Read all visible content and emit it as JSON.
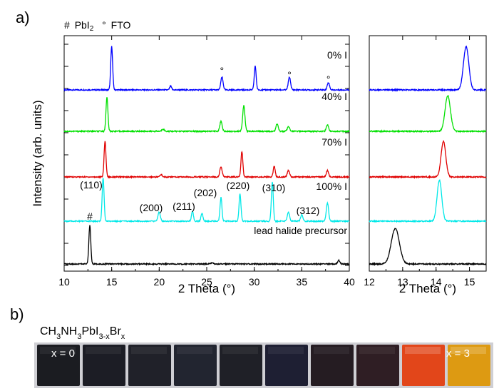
{
  "panels": {
    "a": {
      "label": "a)"
    },
    "b": {
      "label": "b)"
    }
  },
  "legend_markers": {
    "pbi2_symbol": "#",
    "pbi2_main": "PbI",
    "pbi2_sub": "2",
    "fto_symbol": "°",
    "fto_label": "FTO"
  },
  "chart_data": [
    {
      "type": "line",
      "title": "",
      "xlabel": "2 Theta (°)",
      "ylabel": "Intensity (arb. units)",
      "xlim": [
        10,
        40
      ],
      "xticks": [
        "10",
        "15",
        "20",
        "25",
        "30",
        "35",
        "40"
      ],
      "ylim": [
        0,
        5
      ],
      "y_ticklabels": false,
      "grid": false,
      "series": [
        {
          "name": "0% I",
          "label": "0% I",
          "color": "#0000ff",
          "baseline": 4,
          "peaks": [
            [
              15.0,
              0.95,
              0.1
            ],
            [
              21.2,
              0.08,
              0.1
            ],
            [
              26.6,
              0.28,
              0.12
            ],
            [
              30.1,
              0.52,
              0.1
            ],
            [
              33.7,
              0.28,
              0.12
            ],
            [
              37.8,
              0.16,
              0.12
            ]
          ]
        },
        {
          "name": "40% I",
          "label": "40% I",
          "color": "#00e000",
          "baseline": 3,
          "peaks": [
            [
              14.5,
              0.75,
              0.1
            ],
            [
              20.4,
              0.05,
              0.12
            ],
            [
              26.5,
              0.22,
              0.12
            ],
            [
              28.9,
              0.56,
              0.12
            ],
            [
              32.4,
              0.16,
              0.12
            ],
            [
              33.6,
              0.1,
              0.12
            ],
            [
              37.7,
              0.14,
              0.12
            ]
          ]
        },
        {
          "name": "70% I",
          "label": "70% I",
          "color": "#e00000",
          "baseline": 2,
          "peaks": [
            [
              14.3,
              0.78,
              0.1
            ],
            [
              20.2,
              0.05,
              0.12
            ],
            [
              26.5,
              0.22,
              0.12
            ],
            [
              28.7,
              0.56,
              0.1
            ],
            [
              32.1,
              0.24,
              0.1
            ],
            [
              33.6,
              0.14,
              0.12
            ],
            [
              37.7,
              0.14,
              0.12
            ]
          ]
        },
        {
          "name": "100% I",
          "label": "100% I",
          "color": "#00e8e8",
          "baseline": 1,
          "peaks": [
            [
              14.1,
              0.95,
              0.1
            ],
            [
              20.0,
              0.2,
              0.12
            ],
            [
              23.5,
              0.22,
              0.1
            ],
            [
              24.5,
              0.18,
              0.1
            ],
            [
              26.5,
              0.52,
              0.1
            ],
            [
              28.5,
              0.6,
              0.1
            ],
            [
              31.9,
              0.86,
              0.1
            ],
            [
              33.6,
              0.2,
              0.12
            ],
            [
              35.0,
              0.14,
              0.12
            ],
            [
              37.7,
              0.4,
              0.12
            ]
          ]
        },
        {
          "name": "lead halide precursor",
          "label": "lead halide precursor",
          "color": "#000000",
          "baseline": 0,
          "peaks": [
            [
              12.7,
              0.85,
              0.1
            ],
            [
              25.5,
              0.02,
              0.2
            ],
            [
              38.9,
              0.08,
              0.12
            ]
          ]
        }
      ],
      "peak_markers": {
        "pbi2": {
          "symbol": "#",
          "two_theta": 12.7
        },
        "fto": {
          "symbol": "°",
          "two_theta": [
            26.6,
            33.7,
            37.8
          ]
        }
      },
      "annotations": [
        {
          "text": "(110)",
          "two_theta": 14.1
        },
        {
          "text": "(200)",
          "two_theta": 20.0
        },
        {
          "text": "(211)",
          "two_theta": 23.5
        },
        {
          "text": "(202)",
          "two_theta": 24.5
        },
        {
          "text": "(220)",
          "two_theta": 28.5
        },
        {
          "text": "(310)",
          "two_theta": 31.9
        },
        {
          "text": "(312)",
          "two_theta": 35.0
        }
      ]
    },
    {
      "type": "line",
      "title": "",
      "xlabel": "2 Theta (°)",
      "ylabel": "",
      "xlim": [
        12,
        15.5
      ],
      "xticks": [
        "12",
        "13",
        "14",
        "15"
      ],
      "ylim": [
        0,
        5
      ],
      "grid": false,
      "series": [
        {
          "name": "0% I",
          "color": "#0000ff",
          "baseline": 4,
          "peaks": [
            [
              14.9,
              0.95,
              0.08
            ]
          ]
        },
        {
          "name": "40% I",
          "color": "#00e000",
          "baseline": 3,
          "peaks": [
            [
              14.35,
              0.78,
              0.08
            ]
          ]
        },
        {
          "name": "70% I",
          "color": "#e00000",
          "baseline": 2,
          "peaks": [
            [
              14.22,
              0.78,
              0.07
            ]
          ]
        },
        {
          "name": "100% I",
          "color": "#00e8e8",
          "baseline": 1,
          "peaks": [
            [
              14.1,
              0.9,
              0.07
            ]
          ]
        },
        {
          "name": "lead halide precursor",
          "color": "#000000",
          "baseline": 0,
          "peaks": [
            [
              12.78,
              0.78,
              0.12
            ]
          ]
        }
      ]
    }
  ],
  "photo": {
    "formula": {
      "a": "CH",
      "b": "3",
      "c": "NH",
      "d": "3",
      "e": "PbI",
      "f": "3-x",
      "g": "Br",
      "h": "x"
    },
    "label_first": "x = 0",
    "label_last": "x = 3",
    "film_colors": [
      "#1b1c21",
      "#1c1d25",
      "#202129",
      "#222530",
      "#1f2027",
      "#1e1f33",
      "#251c22",
      "#2f1e24",
      "#e2461a",
      "#dd9a12"
    ]
  }
}
